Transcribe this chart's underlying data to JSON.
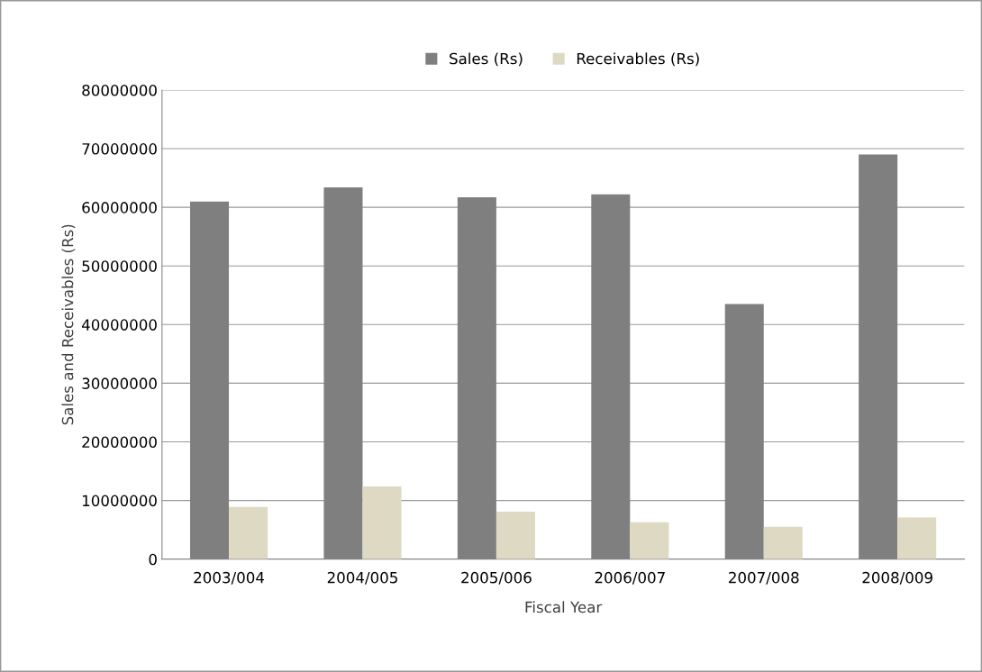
{
  "chart_data": {
    "type": "bar",
    "xlabel": "Fiscal Year",
    "ylabel": "Sales and Receivables (Rs)",
    "categories": [
      "2003/004",
      "2004/005",
      "2005/006",
      "2006/007",
      "2007/008",
      "2008/009"
    ],
    "series": [
      {
        "name": "Sales (Rs)",
        "color": "#7f7f7f",
        "values": [
          61000000,
          63400000,
          61700000,
          62200000,
          43500000,
          69000000
        ]
      },
      {
        "name": "Receivables (Rs)",
        "color": "#ddd9c3",
        "values": [
          8900000,
          12400000,
          8100000,
          6300000,
          5500000,
          7100000
        ]
      }
    ],
    "ylim": [
      0,
      80000000
    ],
    "yticks": [
      0,
      10000000,
      20000000,
      30000000,
      40000000,
      50000000,
      60000000,
      70000000,
      80000000
    ],
    "grid": "y",
    "legend": "top"
  }
}
